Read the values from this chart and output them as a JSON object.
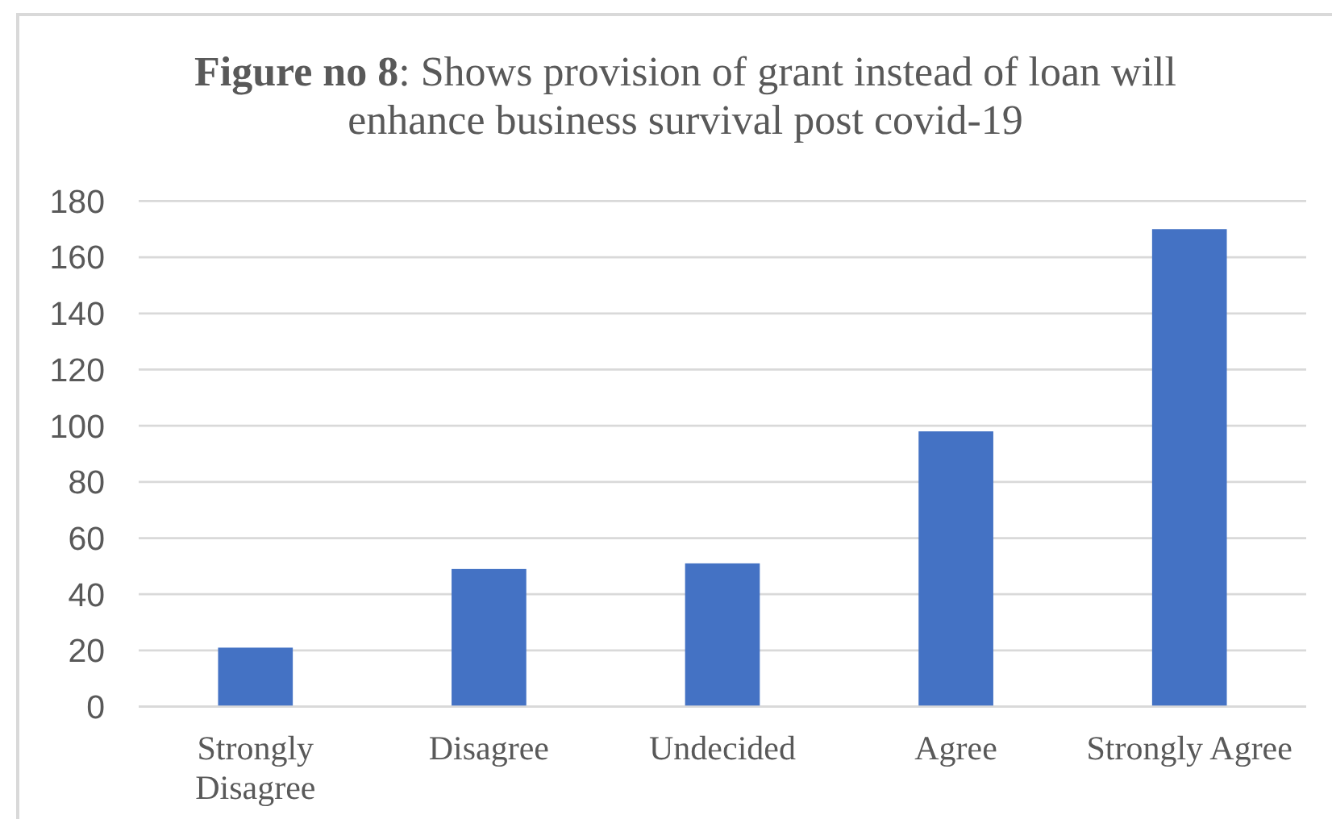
{
  "chart_data": {
    "type": "bar",
    "title": "Figure no 8: Shows provision of grant instead of loan will enhance business survival post covid-19",
    "categories": [
      "Strongly Disagree",
      "Disagree",
      "Undecided",
      "Agree",
      "Strongly Agree"
    ],
    "values": [
      21,
      49,
      51,
      98,
      170
    ],
    "color": "#4472c4",
    "ylim": [
      0,
      180
    ],
    "yticks": [
      0,
      20,
      40,
      60,
      80,
      100,
      120,
      140,
      160,
      180
    ],
    "grid": "y"
  }
}
